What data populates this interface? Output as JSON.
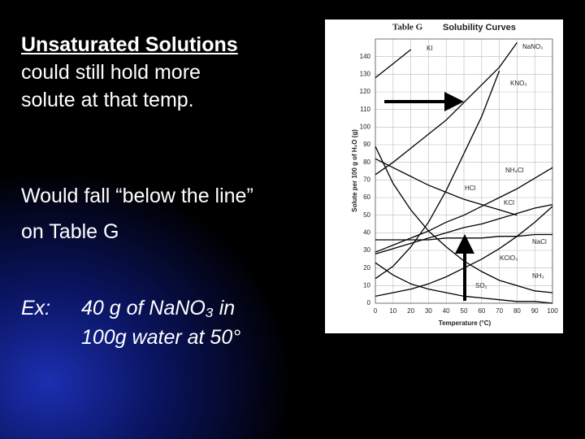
{
  "slide": {
    "heading": "Unsaturated Solutions",
    "lines": [
      "could still hold more",
      "solute at that temp."
    ],
    "lines2": [
      "Would fall “below the line”",
      "on Table G"
    ],
    "example_label": "Ex:",
    "example_lines": [
      "40 g of NaNO₃ in",
      "100g water at 50°"
    ]
  },
  "chart_data": {
    "type": "line",
    "title": "Table G",
    "subtitle": "Solubility Curves",
    "x_label": "Temperature (°C)",
    "y_label": "Solute per 100 g of H₂O (g)",
    "x": [
      0,
      10,
      20,
      30,
      40,
      50,
      60,
      70,
      80,
      90,
      100
    ],
    "xlim": [
      0,
      100
    ],
    "xticks": [
      0,
      10,
      20,
      30,
      40,
      50,
      60,
      70,
      80,
      90,
      100
    ],
    "ylim": [
      0,
      150
    ],
    "yticks": [
      0,
      10,
      20,
      30,
      40,
      50,
      60,
      70,
      80,
      90,
      100,
      110,
      120,
      130,
      140
    ],
    "grid": true,
    "series": [
      {
        "name": "KI",
        "color": "#000000",
        "values": [
          128,
          136,
          144,
          null,
          null,
          null,
          null,
          null,
          null,
          null,
          null
        ]
      },
      {
        "name": "NaNO₃",
        "color": "#000000",
        "values": [
          73,
          80,
          88,
          96,
          104,
          114,
          124,
          134,
          148,
          null,
          null
        ]
      },
      {
        "name": "KNO₃",
        "color": "#000000",
        "values": [
          14,
          21,
          32,
          46,
          64,
          85,
          106,
          132,
          null,
          null,
          null
        ]
      },
      {
        "name": "NH₄Cl",
        "color": "#000000",
        "values": [
          29,
          33,
          37,
          41,
          46,
          50,
          55,
          60,
          65,
          71,
          77
        ]
      },
      {
        "name": "HCl",
        "color": "#000000",
        "values": [
          82,
          77,
          72,
          67,
          63,
          59,
          56,
          53,
          50,
          null,
          null
        ]
      },
      {
        "name": "KCl",
        "color": "#000000",
        "values": [
          28,
          31,
          34,
          37,
          40,
          43,
          45,
          48,
          51,
          54,
          56
        ]
      },
      {
        "name": "NaCl",
        "color": "#000000",
        "values": [
          36,
          36,
          36,
          36,
          37,
          37,
          37,
          38,
          38,
          39,
          39
        ]
      },
      {
        "name": "KClO₃",
        "color": "#000000",
        "values": [
          4,
          6,
          8,
          11,
          15,
          20,
          25,
          31,
          38,
          46,
          55
        ]
      },
      {
        "name": "NH₃",
        "color": "#000000",
        "values": [
          89,
          68,
          53,
          41,
          32,
          24,
          18,
          13,
          10,
          7,
          6
        ]
      },
      {
        "name": "SO₂",
        "color": "#000000",
        "values": [
          23,
          16,
          11,
          8,
          6,
          4,
          3,
          2,
          1,
          1,
          0
        ]
      }
    ]
  }
}
